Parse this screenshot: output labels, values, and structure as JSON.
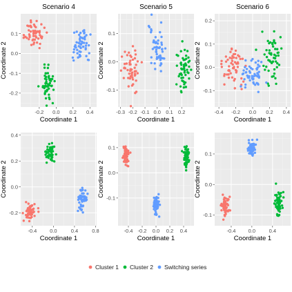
{
  "figure": {
    "legend": {
      "position": "bottom",
      "items": [
        {
          "label": "Cluster 1",
          "color": "#F8766D"
        },
        {
          "label": "Cluster 2",
          "color": "#00BA38"
        },
        {
          "label": "Switching series",
          "color": "#619CFF"
        }
      ]
    }
  },
  "chart_data": [
    {
      "type": "scatter",
      "title": "Scenario 4",
      "xlabel": "Coordinate 1",
      "ylabel": "Coordinate 2",
      "xlim": [
        -0.42,
        0.48
      ],
      "ylim": [
        -0.27,
        0.2
      ],
      "xticks": [
        -0.2,
        0.0,
        0.2,
        0.4
      ],
      "yticks": [
        -0.2,
        -0.1,
        0.0,
        0.1
      ],
      "xtick_labels": [
        "-0.2",
        "0.0",
        "0.2",
        "0.4"
      ],
      "ytick_labels": [
        "-0.2",
        "-0.1",
        "0.0",
        "0.1"
      ],
      "grid": true,
      "series": [
        {
          "name": "Cluster 1",
          "cx": -0.25,
          "cy": 0.1,
          "sx": 0.06,
          "sy": 0.035,
          "n": 55
        },
        {
          "name": "Cluster 2",
          "cx": -0.1,
          "cy": -0.15,
          "sx": 0.04,
          "sy": 0.04,
          "n": 55
        },
        {
          "name": "Switching series",
          "cx": 0.3,
          "cy": 0.04,
          "sx": 0.07,
          "sy": 0.04,
          "n": 55
        }
      ]
    },
    {
      "type": "scatter",
      "title": "Scenario 5",
      "xlabel": "Coordinate 1",
      "ylabel": "Coordinate 2",
      "xlim": [
        -0.32,
        0.3
      ],
      "ylim": [
        -0.16,
        0.17
      ],
      "xticks": [
        -0.3,
        -0.2,
        -0.1,
        0.0,
        0.1,
        0.2
      ],
      "yticks": [
        -0.1,
        0.0,
        0.1
      ],
      "xtick_labels": [
        "-0.3",
        "-0.2",
        "-0.1",
        "0.0",
        "0.1",
        "0.2"
      ],
      "ytick_labels": [
        "-0.1",
        "0.0",
        "0.1"
      ],
      "grid": true,
      "series": [
        {
          "name": "Cluster 1",
          "cx": -0.21,
          "cy": -0.03,
          "sx": 0.035,
          "sy": 0.04,
          "n": 55
        },
        {
          "name": "Cluster 2",
          "cx": 0.22,
          "cy": -0.03,
          "sx": 0.025,
          "sy": 0.045,
          "n": 55
        },
        {
          "name": "Switching series",
          "cx": 0.0,
          "cy": 0.04,
          "sx": 0.03,
          "sy": 0.04,
          "n": 55
        }
      ]
    },
    {
      "type": "scatter",
      "title": "Scenario 6",
      "xlabel": "Coordinate 1",
      "ylabel": "Coordinate 2",
      "xlim": [
        -0.45,
        0.45
      ],
      "ylim": [
        -0.17,
        0.23
      ],
      "xticks": [
        -0.4,
        -0.2,
        0.0,
        0.2,
        0.4
      ],
      "yticks": [
        -0.1,
        0.0,
        0.1,
        0.2
      ],
      "xtick_labels": [
        "-0.4",
        "-0.2",
        "0.0",
        "0.2",
        "0.4"
      ],
      "ytick_labels": [
        "-0.1",
        "0.0",
        "0.1",
        "0.2"
      ],
      "grid": true,
      "series": [
        {
          "name": "Cluster 1",
          "cx": -0.25,
          "cy": 0.01,
          "sx": 0.07,
          "sy": 0.05,
          "n": 55
        },
        {
          "name": "Cluster 2",
          "cx": 0.24,
          "cy": 0.03,
          "sx": 0.06,
          "sy": 0.05,
          "n": 55
        },
        {
          "name": "Switching series",
          "cx": 0.0,
          "cy": -0.03,
          "sx": 0.07,
          "sy": 0.035,
          "n": 55
        }
      ]
    },
    {
      "type": "scatter",
      "title": "",
      "xlabel": "Coordinate 1",
      "ylabel": "Coordinate 2",
      "xlim": [
        -0.62,
        0.82
      ],
      "ylim": [
        -0.3,
        0.42
      ],
      "xticks": [
        -0.4,
        0.0,
        0.4,
        0.8
      ],
      "yticks": [
        -0.2,
        0.0,
        0.2,
        0.4
      ],
      "xtick_labels": [
        "-0.4",
        "0.0",
        "0.4",
        "0.8"
      ],
      "ytick_labels": [
        "-0.2",
        "0.0",
        "0.2",
        "0.4"
      ],
      "grid": true,
      "series": [
        {
          "name": "Cluster 1",
          "cx": -0.45,
          "cy": -0.19,
          "sx": 0.05,
          "sy": 0.035,
          "n": 55
        },
        {
          "name": "Cluster 2",
          "cx": -0.05,
          "cy": 0.27,
          "sx": 0.04,
          "sy": 0.035,
          "n": 55
        },
        {
          "name": "Switching series",
          "cx": 0.55,
          "cy": -0.09,
          "sx": 0.045,
          "sy": 0.04,
          "n": 55
        }
      ]
    },
    {
      "type": "scatter",
      "title": "",
      "xlabel": "Coordinate 1",
      "ylabel": "Coordinate 2",
      "xlim": [
        -0.55,
        0.55
      ],
      "ylim": [
        -0.21,
        0.16
      ],
      "xticks": [
        -0.4,
        -0.2,
        0.0,
        0.2,
        0.4
      ],
      "yticks": [
        -0.1,
        0.0,
        0.1
      ],
      "xtick_labels": [
        "-0.4",
        "-0.2",
        "0.0",
        "0.2",
        "0.4"
      ],
      "ytick_labels": [
        "-0.1",
        "0.0",
        "0.1"
      ],
      "grid": true,
      "series": [
        {
          "name": "Cluster 1",
          "cx": -0.44,
          "cy": 0.07,
          "sx": 0.02,
          "sy": 0.018,
          "n": 55
        },
        {
          "name": "Cluster 2",
          "cx": 0.44,
          "cy": 0.06,
          "sx": 0.02,
          "sy": 0.022,
          "n": 55
        },
        {
          "name": "Switching series",
          "cx": 0.0,
          "cy": -0.13,
          "sx": 0.025,
          "sy": 0.02,
          "n": 55
        }
      ]
    },
    {
      "type": "scatter",
      "title": "",
      "xlabel": "Coordinate 1",
      "ylabel": "Coordinate 2",
      "xlim": [
        -0.72,
        0.75
      ],
      "ylim": [
        -0.135,
        0.17
      ],
      "xticks": [
        -0.4,
        0.0,
        0.4
      ],
      "yticks": [
        -0.1,
        0.0,
        0.1
      ],
      "xtick_labels": [
        "-0.4",
        "0.0",
        "0.4"
      ],
      "ytick_labels": [
        "-0.1",
        "0.0",
        "0.1"
      ],
      "grid": true,
      "series": [
        {
          "name": "Cluster 1",
          "cx": -0.53,
          "cy": -0.07,
          "sx": 0.04,
          "sy": 0.015,
          "n": 55
        },
        {
          "name": "Cluster 2",
          "cx": 0.52,
          "cy": -0.06,
          "sx": 0.04,
          "sy": 0.02,
          "n": 55
        },
        {
          "name": "Switching series",
          "cx": 0.0,
          "cy": 0.12,
          "sx": 0.04,
          "sy": 0.013,
          "n": 55
        }
      ]
    }
  ]
}
